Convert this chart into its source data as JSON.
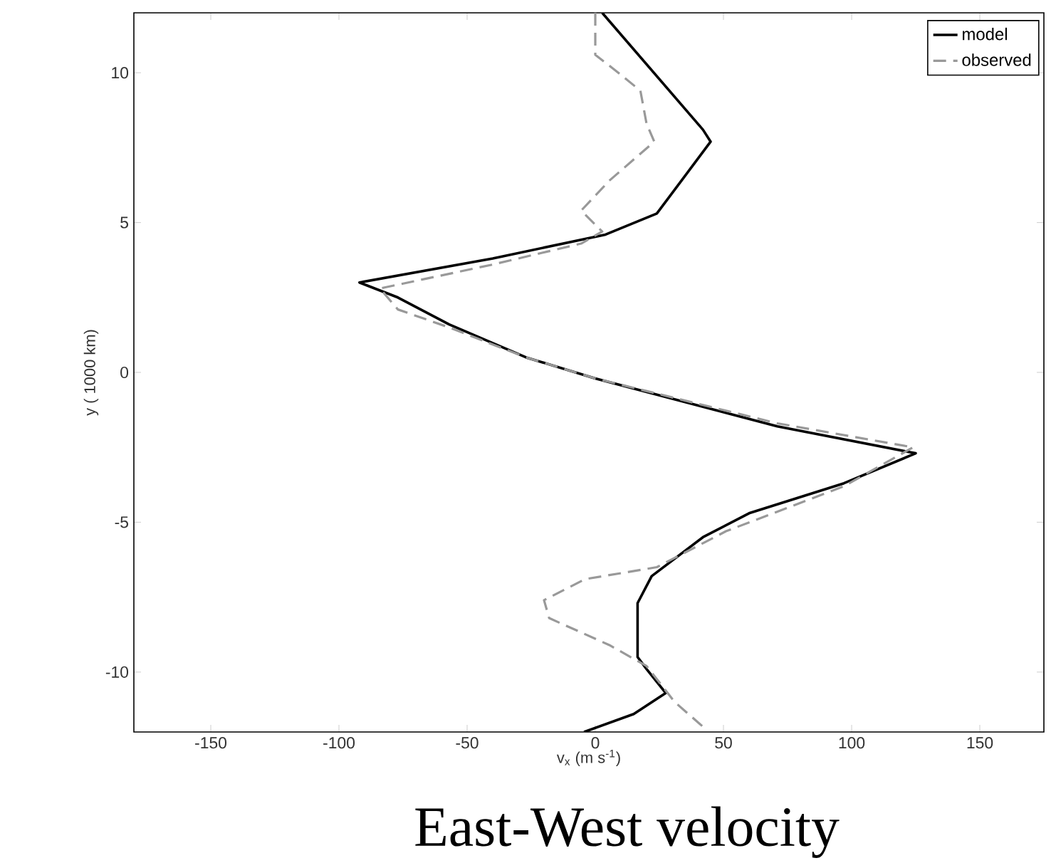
{
  "chart_data": {
    "type": "line",
    "xlabel": "v$_{x}$ (m s$^{-1}$)",
    "ylabel": "y ( 1000 km)",
    "annotations": [
      "East-West velocity"
    ],
    "xlim": [
      -180,
      175
    ],
    "ylim": [
      -12,
      12
    ],
    "xticks": [
      -150,
      -100,
      -50,
      0,
      50,
      100,
      150
    ],
    "yticks": [
      -10,
      -5,
      0,
      5,
      10
    ],
    "grid": false,
    "legend": "top right",
    "marker": "none",
    "series": [
      {
        "name": "model",
        "color": "#000000",
        "line_style": "solid",
        "x": [
          2.7,
          42,
          45,
          24,
          4,
          -40,
          -92,
          -77,
          -57,
          -27,
          0,
          71,
          125,
          97,
          60,
          42,
          22,
          16.5,
          16.5,
          20,
          27.5,
          15,
          -4.4
        ],
        "values": [
          12,
          8.1,
          7.7,
          5.3,
          4.6,
          3.8,
          3.0,
          2.5,
          1.6,
          0.5,
          -0.2,
          -1.8,
          -2.7,
          -3.7,
          -4.7,
          -5.5,
          -6.8,
          -7.7,
          -9.5,
          -9.9,
          -10.7,
          -11.4,
          -12
        ]
      },
      {
        "name": "observed",
        "color": "#999999",
        "line_style": "dashed",
        "x": [
          0,
          0,
          9,
          17.6,
          20,
          23,
          5.5,
          -5.5,
          2.7,
          -5.5,
          -40,
          -84,
          -77,
          -57,
          -27,
          0,
          71,
          124,
          97,
          51,
          24,
          -4,
          -20,
          -18,
          5.5,
          20,
          31,
          43
        ],
        "values": [
          12,
          10.6,
          10.0,
          9.4,
          8.3,
          7.7,
          6.4,
          5.4,
          4.7,
          4.3,
          3.6,
          2.8,
          2.1,
          1.5,
          0.5,
          -0.2,
          -1.7,
          -2.5,
          -3.8,
          -5.3,
          -6.5,
          -6.9,
          -7.6,
          -8.2,
          -9.1,
          -9.8,
          -11,
          -11.9
        ]
      }
    ]
  }
}
